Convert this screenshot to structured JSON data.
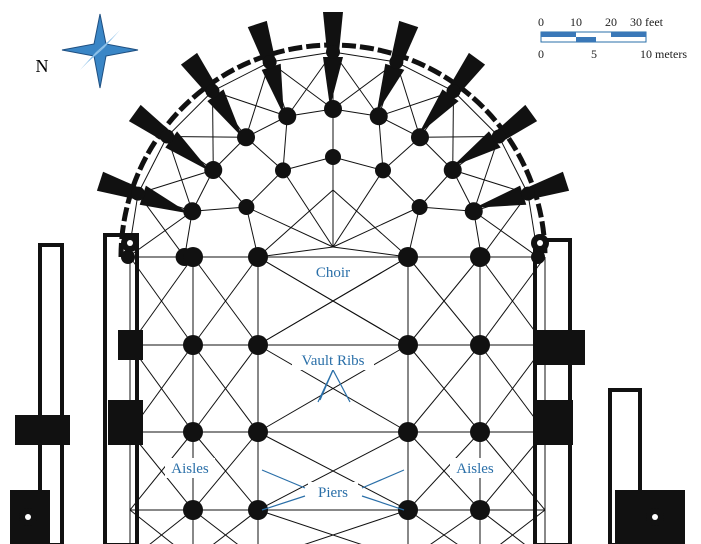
{
  "compass": {
    "label": "N"
  },
  "scale": {
    "feet": [
      "0",
      "10",
      "20",
      "30 feet"
    ],
    "meters": [
      "0",
      "5",
      "10 meters"
    ]
  },
  "labels": {
    "choir": "Choir",
    "vault_ribs": "Vault Ribs",
    "aisles_left": "Aisles",
    "aisles_right": "Aisles",
    "piers": "Piers"
  }
}
